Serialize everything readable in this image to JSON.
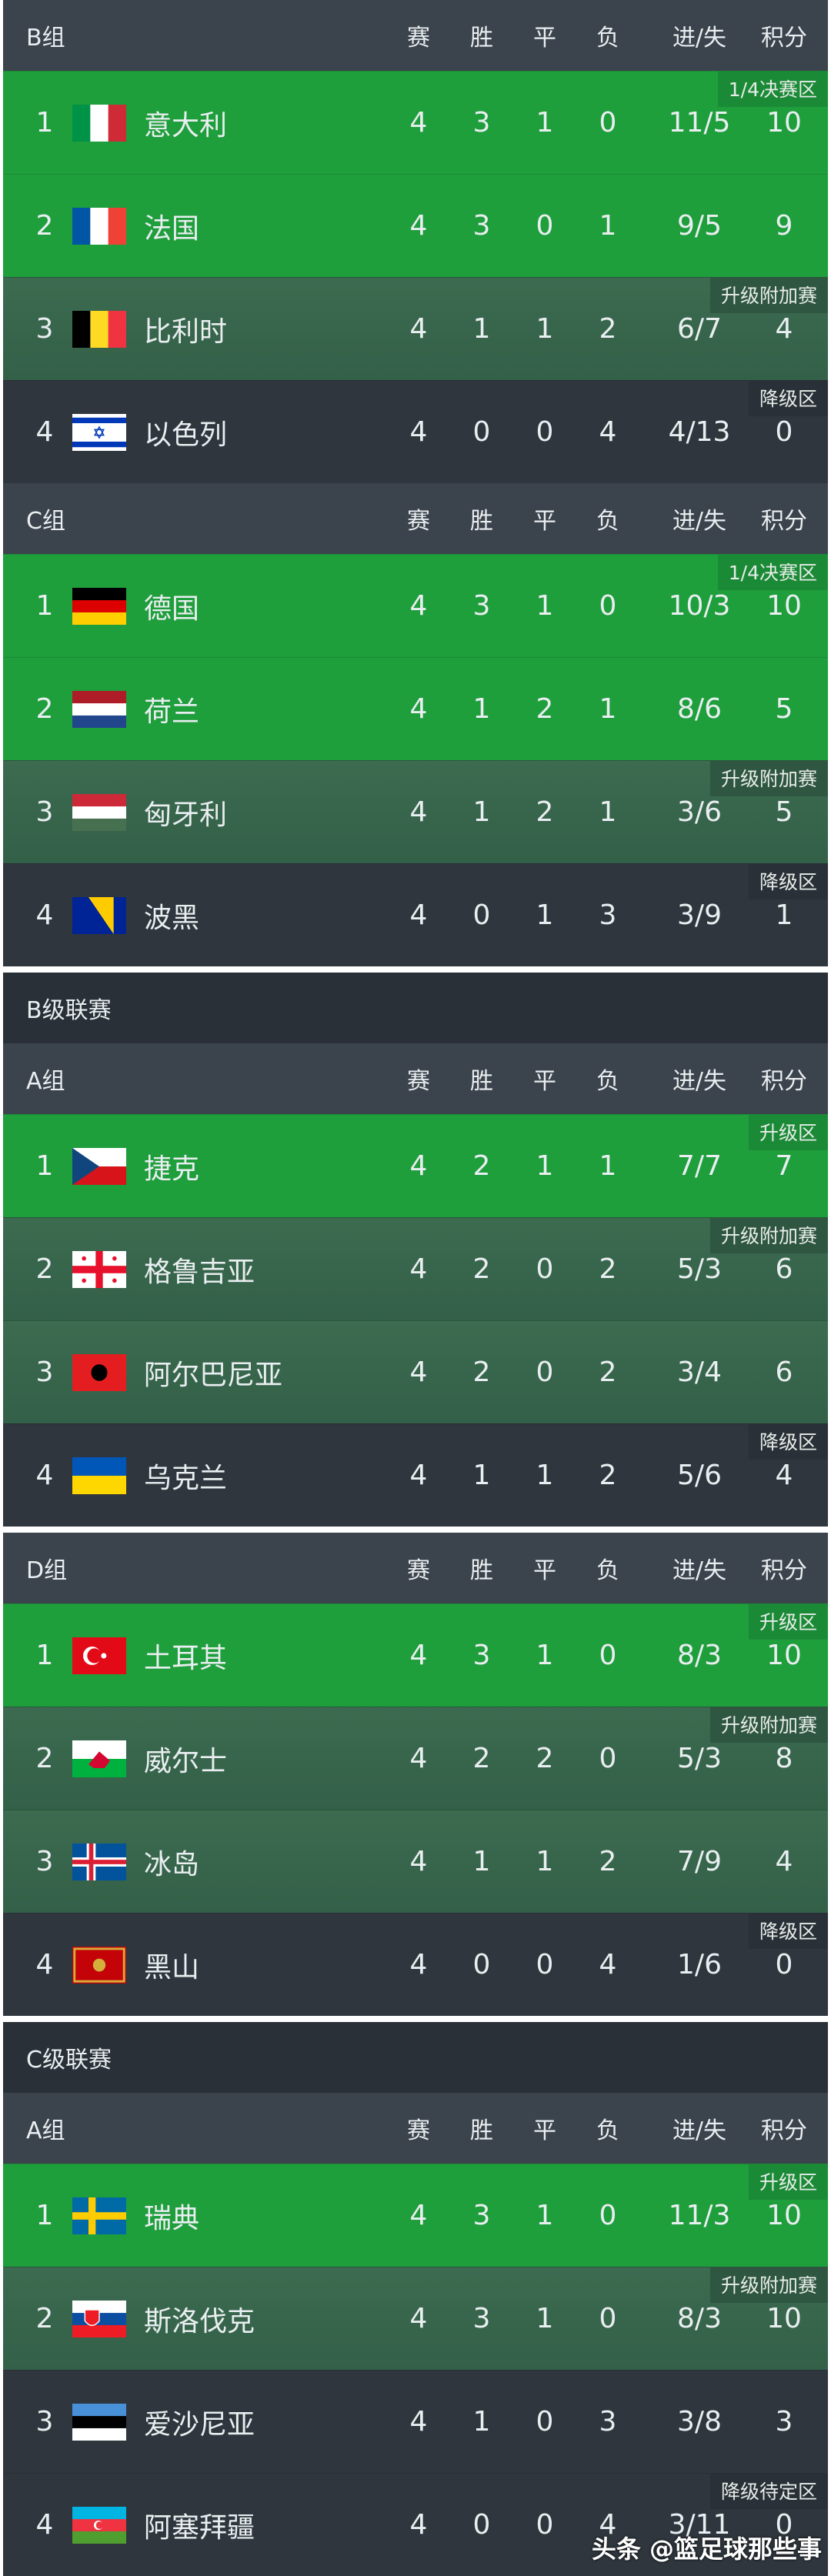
{
  "columns": [
    "赛",
    "胜",
    "平",
    "负",
    "进/失",
    "积分"
  ],
  "blocks": [
    {
      "title": null,
      "groups": [
        {
          "name": "B组",
          "rows": [
            {
              "rank": "1",
              "flag": "it",
              "team": "意大利",
              "zone": "q",
              "badge": "1/4决赛区",
              "p": "4",
              "w": "3",
              "d": "1",
              "l": "0",
              "gf": "11/5",
              "pts": "10"
            },
            {
              "rank": "2",
              "flag": "fr",
              "team": "法国",
              "zone": "q",
              "badge": "",
              "p": "4",
              "w": "3",
              "d": "0",
              "l": "1",
              "gf": "9/5",
              "pts": "9"
            },
            {
              "rank": "3",
              "flag": "be",
              "team": "比利时",
              "zone": "p",
              "badge": "升级附加赛",
              "p": "4",
              "w": "1",
              "d": "1",
              "l": "2",
              "gf": "6/7",
              "pts": "4"
            },
            {
              "rank": "4",
              "flag": "il",
              "team": "以色列",
              "zone": "r",
              "badge": "降级区",
              "p": "4",
              "w": "0",
              "d": "0",
              "l": "4",
              "gf": "4/13",
              "pts": "0"
            }
          ]
        },
        {
          "name": "C组",
          "rows": [
            {
              "rank": "1",
              "flag": "de",
              "team": "德国",
              "zone": "q",
              "badge": "1/4决赛区",
              "p": "4",
              "w": "3",
              "d": "1",
              "l": "0",
              "gf": "10/3",
              "pts": "10"
            },
            {
              "rank": "2",
              "flag": "nl",
              "team": "荷兰",
              "zone": "q",
              "badge": "",
              "p": "4",
              "w": "1",
              "d": "2",
              "l": "1",
              "gf": "8/6",
              "pts": "5"
            },
            {
              "rank": "3",
              "flag": "hu",
              "team": "匈牙利",
              "zone": "p",
              "badge": "升级附加赛",
              "p": "4",
              "w": "1",
              "d": "2",
              "l": "1",
              "gf": "3/6",
              "pts": "5"
            },
            {
              "rank": "4",
              "flag": "ba",
              "team": "波黑",
              "zone": "r",
              "badge": "降级区",
              "p": "4",
              "w": "0",
              "d": "1",
              "l": "3",
              "gf": "3/9",
              "pts": "1"
            }
          ]
        }
      ]
    },
    {
      "title": "B级联赛",
      "groups": [
        {
          "name": "A组",
          "rows": [
            {
              "rank": "1",
              "flag": "cz",
              "team": "捷克",
              "zone": "q",
              "badge": "升级区",
              "p": "4",
              "w": "2",
              "d": "1",
              "l": "1",
              "gf": "7/7",
              "pts": "7"
            },
            {
              "rank": "2",
              "flag": "ge",
              "team": "格鲁吉亚",
              "zone": "p",
              "badge": "升级附加赛",
              "p": "4",
              "w": "2",
              "d": "0",
              "l": "2",
              "gf": "5/3",
              "pts": "6"
            },
            {
              "rank": "3",
              "flag": "al",
              "team": "阿尔巴尼亚",
              "zone": "p",
              "badge": "",
              "p": "4",
              "w": "2",
              "d": "0",
              "l": "2",
              "gf": "3/4",
              "pts": "6"
            },
            {
              "rank": "4",
              "flag": "ua",
              "team": "乌克兰",
              "zone": "r",
              "badge": "降级区",
              "p": "4",
              "w": "1",
              "d": "1",
              "l": "2",
              "gf": "5/6",
              "pts": "4"
            }
          ]
        }
      ]
    },
    {
      "title": null,
      "groups": [
        {
          "name": "D组",
          "rows": [
            {
              "rank": "1",
              "flag": "tr",
              "team": "土耳其",
              "zone": "q",
              "badge": "升级区",
              "p": "4",
              "w": "3",
              "d": "1",
              "l": "0",
              "gf": "8/3",
              "pts": "10"
            },
            {
              "rank": "2",
              "flag": "wa",
              "team": "威尔士",
              "zone": "p",
              "badge": "升级附加赛",
              "p": "4",
              "w": "2",
              "d": "2",
              "l": "0",
              "gf": "5/3",
              "pts": "8"
            },
            {
              "rank": "3",
              "flag": "is",
              "team": "冰岛",
              "zone": "p",
              "badge": "",
              "p": "4",
              "w": "1",
              "d": "1",
              "l": "2",
              "gf": "7/9",
              "pts": "4"
            },
            {
              "rank": "4",
              "flag": "me",
              "team": "黑山",
              "zone": "r",
              "badge": "降级区",
              "p": "4",
              "w": "0",
              "d": "0",
              "l": "4",
              "gf": "1/6",
              "pts": "0"
            }
          ]
        }
      ]
    },
    {
      "title": "C级联赛",
      "groups": [
        {
          "name": "A组",
          "rows": [
            {
              "rank": "1",
              "flag": "se",
              "team": "瑞典",
              "zone": "q",
              "badge": "升级区",
              "p": "4",
              "w": "3",
              "d": "1",
              "l": "0",
              "gf": "11/3",
              "pts": "10"
            },
            {
              "rank": "2",
              "flag": "sk",
              "team": "斯洛伐克",
              "zone": "p",
              "badge": "升级附加赛",
              "p": "4",
              "w": "3",
              "d": "1",
              "l": "0",
              "gf": "8/3",
              "pts": "10"
            },
            {
              "rank": "3",
              "flag": "ee",
              "team": "爱沙尼亚",
              "zone": "r",
              "badge": "",
              "p": "4",
              "w": "1",
              "d": "0",
              "l": "3",
              "gf": "3/8",
              "pts": "3"
            },
            {
              "rank": "4",
              "flag": "az",
              "team": "阿塞拜疆",
              "zone": "r",
              "badge": "降级待定区",
              "p": "4",
              "w": "0",
              "d": "0",
              "l": "4",
              "gf": "3/11",
              "pts": "0"
            }
          ]
        }
      ]
    }
  ],
  "footer": "头条 @篮足球那些事",
  "colors": {
    "qualify": "#1f9e3c",
    "playoff": "#3c6b50",
    "relegation": "#2f363d",
    "header": "#3b434c",
    "title": "#2a3038"
  }
}
